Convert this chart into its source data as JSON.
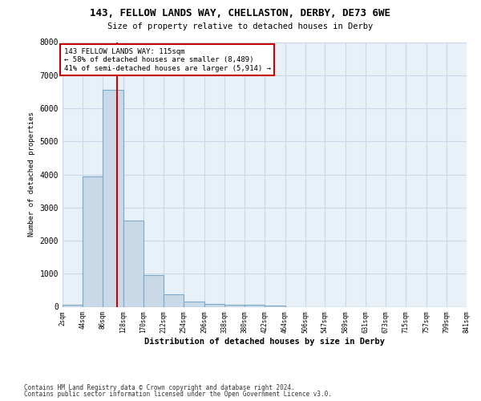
{
  "title": "143, FELLOW LANDS WAY, CHELLASTON, DERBY, DE73 6WE",
  "subtitle": "Size of property relative to detached houses in Derby",
  "xlabel": "Distribution of detached houses by size in Derby",
  "ylabel": "Number of detached properties",
  "bar_edges": [
    2,
    44,
    86,
    128,
    170,
    212,
    254,
    296,
    338,
    380,
    422,
    464,
    506,
    547,
    589,
    631,
    673,
    715,
    757,
    799,
    841
  ],
  "bar_heights": [
    50,
    3950,
    6550,
    2600,
    950,
    380,
    150,
    90,
    60,
    50,
    30,
    0,
    0,
    0,
    0,
    0,
    0,
    0,
    0,
    0
  ],
  "bar_color": "#c9d9e8",
  "bar_edge_color": "#7aaac8",
  "property_size": 115,
  "vline_color": "#cc0000",
  "annotation_line1": "143 FELLOW LANDS WAY: 115sqm",
  "annotation_line2": "← 58% of detached houses are smaller (8,489)",
  "annotation_line3": "41% of semi-detached houses are larger (5,914) →",
  "annotation_box_edgecolor": "#cc0000",
  "ylim": [
    0,
    8000
  ],
  "yticks": [
    0,
    1000,
    2000,
    3000,
    4000,
    5000,
    6000,
    7000,
    8000
  ],
  "grid_color": "#c8d8e8",
  "plot_bg_color": "#e8f0f8",
  "footer_line1": "Contains HM Land Registry data © Crown copyright and database right 2024.",
  "footer_line2": "Contains public sector information licensed under the Open Government Licence v3.0."
}
